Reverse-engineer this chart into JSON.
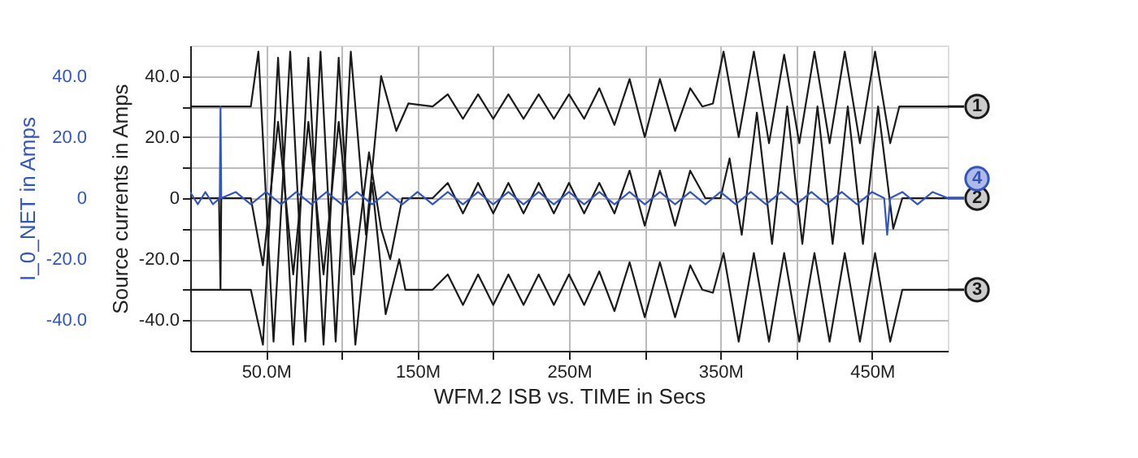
{
  "chart_data": {
    "type": "line",
    "xlabel": "WFM.2   ISB vs. TIME in Secs",
    "ylabel": "I_0_NET in Amps",
    "y2label": "Source currents in Amps",
    "xlim": [
      0,
      500
    ],
    "xticks": [
      {
        "value": 50,
        "label": "50.0M"
      },
      {
        "value": 100,
        "label": null
      },
      {
        "value": 150,
        "label": "150M"
      },
      {
        "value": 200,
        "label": null
      },
      {
        "value": 250,
        "label": "250M"
      },
      {
        "value": 300,
        "label": null
      },
      {
        "value": 350,
        "label": "350M"
      },
      {
        "value": 400,
        "label": null
      },
      {
        "value": 450,
        "label": "450M"
      }
    ],
    "y2lim": [
      -50,
      50
    ],
    "y2ticks": [
      {
        "value": -40,
        "label": "-40.0"
      },
      {
        "value": -30,
        "label": null
      },
      {
        "value": -20,
        "label": "-20.0"
      },
      {
        "value": -10,
        "label": null
      },
      0,
      {
        "value": 10,
        "label": null
      },
      {
        "value": 20,
        "label": "20.0"
      },
      {
        "value": 30,
        "label": null
      },
      {
        "value": 40,
        "label": "40.0"
      }
    ],
    "ylim": [
      -50,
      50
    ],
    "yticks": [
      {
        "value": -40,
        "label": "-40.0"
      },
      {
        "value": -20,
        "label": "-20.0"
      },
      0,
      {
        "value": 20,
        "label": "20.0"
      },
      {
        "value": 40,
        "label": "40.0"
      }
    ],
    "grid": true,
    "legend": "right",
    "marker": "none",
    "line_style": "solid",
    "series": [
      {
        "name": "1",
        "color": "#1a1a1a",
        "axis": "y2",
        "x": [
          0,
          40,
          45,
          55,
          66,
          76,
          86,
          96,
          106,
          116,
          126,
          136,
          144,
          160,
          170,
          180,
          190,
          200,
          210,
          220,
          230,
          240,
          250,
          260,
          270,
          280,
          290,
          300,
          310,
          320,
          330,
          338,
          345,
          352,
          362,
          372,
          382,
          392,
          402,
          412,
          422,
          432,
          442,
          452,
          462,
          468,
          500
        ],
        "values": [
          30,
          30,
          48,
          -47,
          48,
          -47,
          48,
          -47,
          48,
          -12,
          40,
          22,
          31,
          30,
          34,
          26,
          34,
          26,
          34,
          26,
          34,
          26,
          34,
          26,
          36,
          24,
          39,
          20,
          39,
          22,
          36,
          30,
          31,
          48,
          20,
          48,
          18,
          47,
          18,
          48,
          18,
          48,
          18,
          48,
          18,
          30,
          30
        ]
      },
      {
        "name": "2",
        "color": "#1a1a1a",
        "axis": "y2",
        "x": [
          0,
          19,
          20,
          20.5,
          40,
          48,
          58,
          68,
          78,
          88,
          98,
          108,
          118,
          126,
          132,
          140,
          160,
          170,
          180,
          190,
          200,
          210,
          220,
          230,
          240,
          250,
          260,
          270,
          280,
          290,
          300,
          310,
          320,
          330,
          340,
          350,
          356,
          364,
          374,
          384,
          394,
          404,
          414,
          424,
          434,
          444,
          454,
          464,
          470,
          500
        ],
        "values": [
          0,
          0,
          -30,
          0,
          0,
          -22,
          25,
          -25,
          25,
          -25,
          25,
          -25,
          15,
          -10,
          -20,
          0,
          0,
          5,
          -5,
          5,
          -5,
          5,
          -5,
          5,
          -5,
          5,
          -5,
          5,
          -5,
          9,
          -9,
          9,
          -9,
          9,
          0,
          0,
          13,
          -12,
          28,
          -15,
          30,
          -15,
          30,
          -15,
          30,
          -15,
          30,
          -10,
          0,
          0
        ]
      },
      {
        "name": "3",
        "color": "#1a1a1a",
        "axis": "y2",
        "x": [
          0,
          40,
          48,
          58,
          68,
          78,
          88,
          98,
          109,
          120,
          129,
          138,
          142,
          160,
          170,
          180,
          190,
          200,
          210,
          220,
          230,
          240,
          250,
          260,
          270,
          280,
          290,
          300,
          310,
          320,
          330,
          338,
          345,
          352,
          362,
          372,
          382,
          392,
          402,
          412,
          422,
          432,
          442,
          452,
          462,
          470,
          500
        ],
        "values": [
          -30,
          -30,
          -48,
          46,
          -48,
          46,
          -48,
          46,
          -48,
          5,
          -38,
          -20,
          -30,
          -30,
          -25,
          -35,
          -25,
          -35,
          -25,
          -35,
          -25,
          -35,
          -25,
          -35,
          -24,
          -37,
          -21,
          -39,
          -21,
          -39,
          -22,
          -30,
          -31,
          -18,
          -47,
          -18,
          -47,
          -18,
          -47,
          -18,
          -47,
          -18,
          -47,
          -18,
          -47,
          -30,
          -30
        ]
      },
      {
        "name": "4",
        "color": "#3355c0",
        "x": [
          0,
          5,
          10,
          15,
          19.5,
          20,
          20.5,
          30,
          40,
          50,
          60,
          70,
          80,
          90,
          100,
          110,
          120,
          130,
          140,
          150,
          160,
          170,
          180,
          190,
          200,
          210,
          220,
          230,
          240,
          250,
          260,
          270,
          280,
          290,
          300,
          310,
          320,
          330,
          340,
          350,
          360,
          370,
          380,
          390,
          400,
          410,
          420,
          430,
          440,
          450,
          458,
          460,
          462,
          470,
          480,
          490,
          500
        ],
        "values": [
          2,
          -2,
          2,
          -2,
          0,
          30,
          0,
          2,
          -2,
          2,
          -2,
          2,
          -2,
          2,
          -2,
          2,
          -2,
          2,
          -2,
          2,
          -2,
          2,
          -2,
          2,
          -2,
          2,
          -2,
          2,
          -2,
          2,
          -2,
          2,
          -2,
          2,
          -2,
          2,
          -2,
          2,
          -2,
          2,
          -2,
          2,
          -2,
          2,
          -2,
          2,
          -2,
          2,
          -2,
          2,
          0,
          -12,
          0,
          2,
          -2,
          2,
          0
        ]
      }
    ]
  }
}
